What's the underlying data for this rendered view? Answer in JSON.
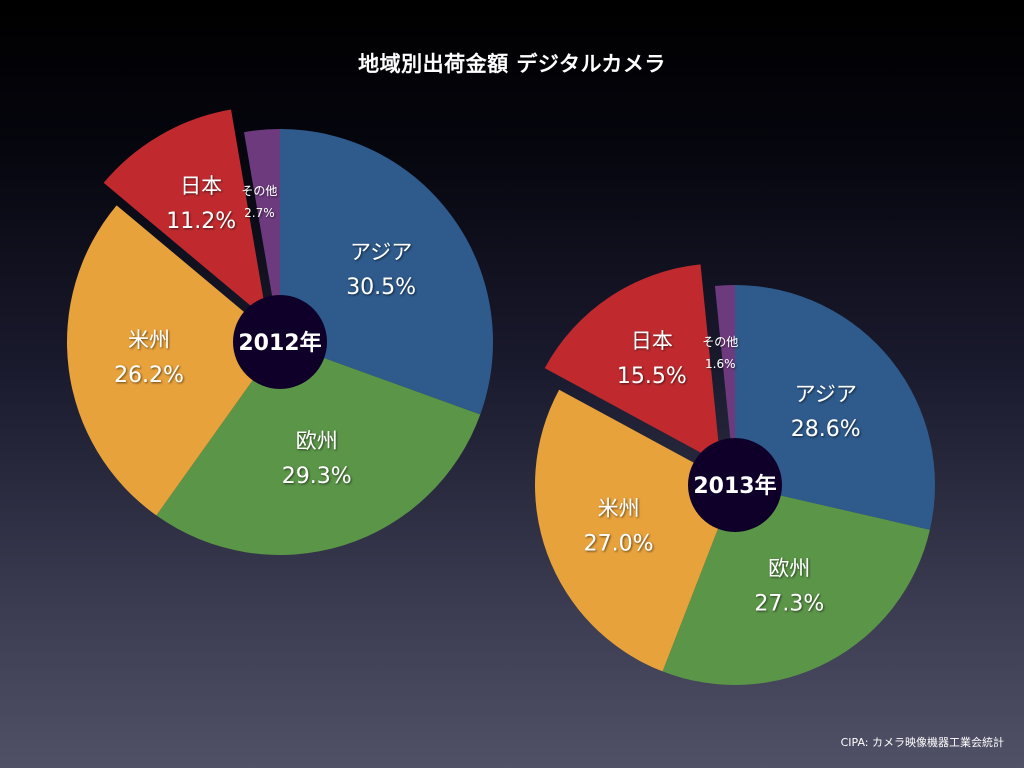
{
  "title": "地域別出荷金額 デジタルカメラ",
  "source": "CIPA: カメラ映像機器工業会統計",
  "chart_data": [
    {
      "type": "pie",
      "center_label": "2012年",
      "title": "地域別出荷金額 デジタルカメラ",
      "start": "top, clockwise",
      "slices": [
        {
          "name": "アジア",
          "value": 30.5,
          "label": "30.5%",
          "color": "#2e5a8c",
          "exploded": false
        },
        {
          "name": "欧州",
          "value": 29.3,
          "label": "29.3%",
          "color": "#5b9548",
          "exploded": false
        },
        {
          "name": "米州",
          "value": 26.2,
          "label": "26.2%",
          "color": "#e8a23c",
          "exploded": false
        },
        {
          "name": "日本",
          "value": 11.2,
          "label": "11.2%",
          "color": "#c02a2e",
          "exploded": true
        },
        {
          "name": "その他",
          "value": 2.7,
          "label": "2.7%",
          "color": "#6d3a7e",
          "exploded": false
        }
      ]
    },
    {
      "type": "pie",
      "center_label": "2013年",
      "title": "地域別出荷金額 デジタルカメラ",
      "start": "top, clockwise",
      "slices": [
        {
          "name": "アジア",
          "value": 28.6,
          "label": "28.6%",
          "color": "#2e5a8c",
          "exploded": false
        },
        {
          "name": "欧州",
          "value": 27.3,
          "label": "27.3%",
          "color": "#5b9548",
          "exploded": false
        },
        {
          "name": "米州",
          "value": 27.0,
          "label": "27.0%",
          "color": "#e8a23c",
          "exploded": false
        },
        {
          "name": "日本",
          "value": 15.5,
          "label": "15.5%",
          "color": "#c02a2e",
          "exploded": true
        },
        {
          "name": "その他",
          "value": 1.6,
          "label": "1.6%",
          "color": "#6d3a7e",
          "exploded": false
        }
      ]
    }
  ],
  "center_color": "#0e0028"
}
